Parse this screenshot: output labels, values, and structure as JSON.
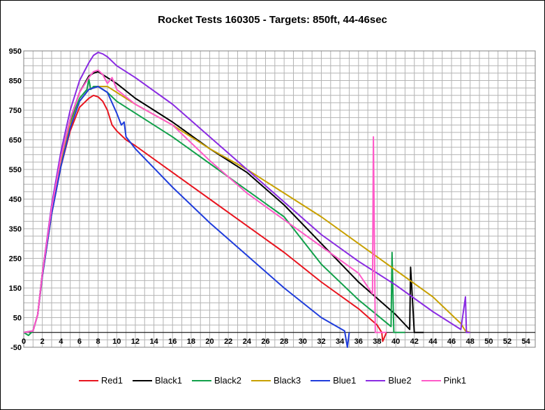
{
  "chart_data": {
    "type": "line",
    "title": "Rocket Tests 160305 - Targets: 850ft, 44-46sec",
    "xlabel": "",
    "ylabel": "",
    "xlim": [
      0,
      55
    ],
    "ylim": [
      -50,
      950
    ],
    "x_ticks": [
      "0",
      "2",
      "4",
      "6",
      "8",
      "10",
      "12",
      "14",
      "16",
      "18",
      "20",
      "22",
      "24",
      "26",
      "28",
      "30",
      "32",
      "34",
      "36",
      "38",
      "40",
      "42",
      "44",
      "46",
      "48",
      "50",
      "52",
      "54"
    ],
    "y_ticks": [
      "950",
      "850",
      "750",
      "650",
      "550",
      "450",
      "350",
      "250",
      "150",
      "50",
      "-50"
    ],
    "grid": true,
    "legend_position": "bottom",
    "series": [
      {
        "name": "Red1",
        "color": "#e8141e",
        "x": [
          0,
          1,
          1.5,
          2,
          3,
          4,
          5,
          6,
          7,
          7.5,
          8,
          8.5,
          9,
          9.5,
          10,
          11,
          12,
          16,
          20,
          24,
          28,
          32,
          36,
          38,
          38.5,
          38.6,
          39
        ],
        "y": [
          0,
          5,
          60,
          190,
          400,
          560,
          680,
          760,
          790,
          800,
          795,
          780,
          750,
          700,
          680,
          650,
          630,
          540,
          450,
          360,
          270,
          170,
          80,
          25,
          0,
          -30,
          0
        ]
      },
      {
        "name": "Black1",
        "color": "#000000",
        "x": [
          0,
          1,
          1.5,
          2,
          3,
          4,
          5,
          6,
          7,
          7.5,
          8,
          9,
          10,
          12,
          16,
          20,
          24,
          28,
          32,
          36,
          40,
          41.5,
          41.6,
          42,
          43
        ],
        "y": [
          0,
          5,
          60,
          200,
          420,
          590,
          720,
          810,
          865,
          875,
          880,
          860,
          840,
          790,
          710,
          620,
          540,
          430,
          300,
          170,
          60,
          10,
          220,
          0,
          0
        ]
      },
      {
        "name": "Black2",
        "color": "#11a04a",
        "x": [
          0,
          0.5,
          1,
          1.5,
          2,
          3,
          4,
          5,
          6,
          6.8,
          7,
          7.2,
          7.5,
          8,
          9,
          10,
          12,
          16,
          20,
          24,
          28,
          32,
          36,
          39.5,
          39.6,
          39.8,
          40,
          41
        ],
        "y": [
          0,
          -10,
          5,
          60,
          200,
          410,
          580,
          710,
          790,
          820,
          855,
          820,
          830,
          830,
          810,
          780,
          740,
          660,
          570,
          480,
          390,
          230,
          110,
          20,
          270,
          0,
          0,
          0
        ]
      },
      {
        "name": "Black3",
        "color": "#c8a000",
        "x": [
          0,
          1,
          1.5,
          2,
          3,
          4,
          5,
          6,
          7,
          8,
          9,
          10,
          12,
          16,
          20,
          24,
          28,
          32,
          36,
          40,
          44,
          47,
          47.5,
          48
        ],
        "y": [
          0,
          5,
          60,
          190,
          400,
          570,
          700,
          780,
          820,
          830,
          830,
          810,
          770,
          700,
          620,
          550,
          470,
          390,
          300,
          210,
          120,
          30,
          5,
          0
        ]
      },
      {
        "name": "Blue1",
        "color": "#1e3cdc",
        "x": [
          0,
          1,
          1.5,
          2,
          3,
          4,
          5,
          6,
          7,
          8,
          9,
          10,
          10.5,
          10.8,
          11,
          12,
          16,
          20,
          24,
          28,
          32,
          34.5,
          34.8,
          35
        ],
        "y": [
          0,
          5,
          60,
          190,
          400,
          560,
          690,
          780,
          820,
          830,
          810,
          740,
          700,
          710,
          660,
          620,
          490,
          370,
          260,
          150,
          50,
          5,
          -50,
          0
        ]
      },
      {
        "name": "Blue2",
        "color": "#8a2be2",
        "x": [
          0,
          1,
          1.5,
          2,
          3,
          4,
          5,
          6,
          7,
          7.5,
          8,
          8.5,
          9,
          10,
          12,
          16,
          20,
          24,
          28,
          32,
          36,
          40,
          44,
          47,
          47.5,
          47.6,
          48
        ],
        "y": [
          0,
          5,
          60,
          200,
          430,
          610,
          750,
          850,
          910,
          935,
          945,
          940,
          930,
          900,
          860,
          770,
          660,
          550,
          440,
          330,
          240,
          160,
          70,
          10,
          120,
          0,
          0
        ]
      },
      {
        "name": "Pink1",
        "color": "#ff5ac8",
        "x": [
          0,
          1,
          1.5,
          2,
          3,
          4,
          5,
          6,
          7,
          7.5,
          8,
          8.5,
          9,
          9.5,
          10,
          12,
          16,
          20,
          24,
          28,
          32,
          36,
          37.5,
          37.6,
          37.8,
          38,
          39
        ],
        "y": [
          0,
          5,
          60,
          200,
          420,
          590,
          720,
          810,
          860,
          880,
          885,
          870,
          840,
          860,
          820,
          770,
          700,
          580,
          470,
          380,
          290,
          200,
          130,
          660,
          0,
          0,
          0
        ]
      }
    ]
  }
}
